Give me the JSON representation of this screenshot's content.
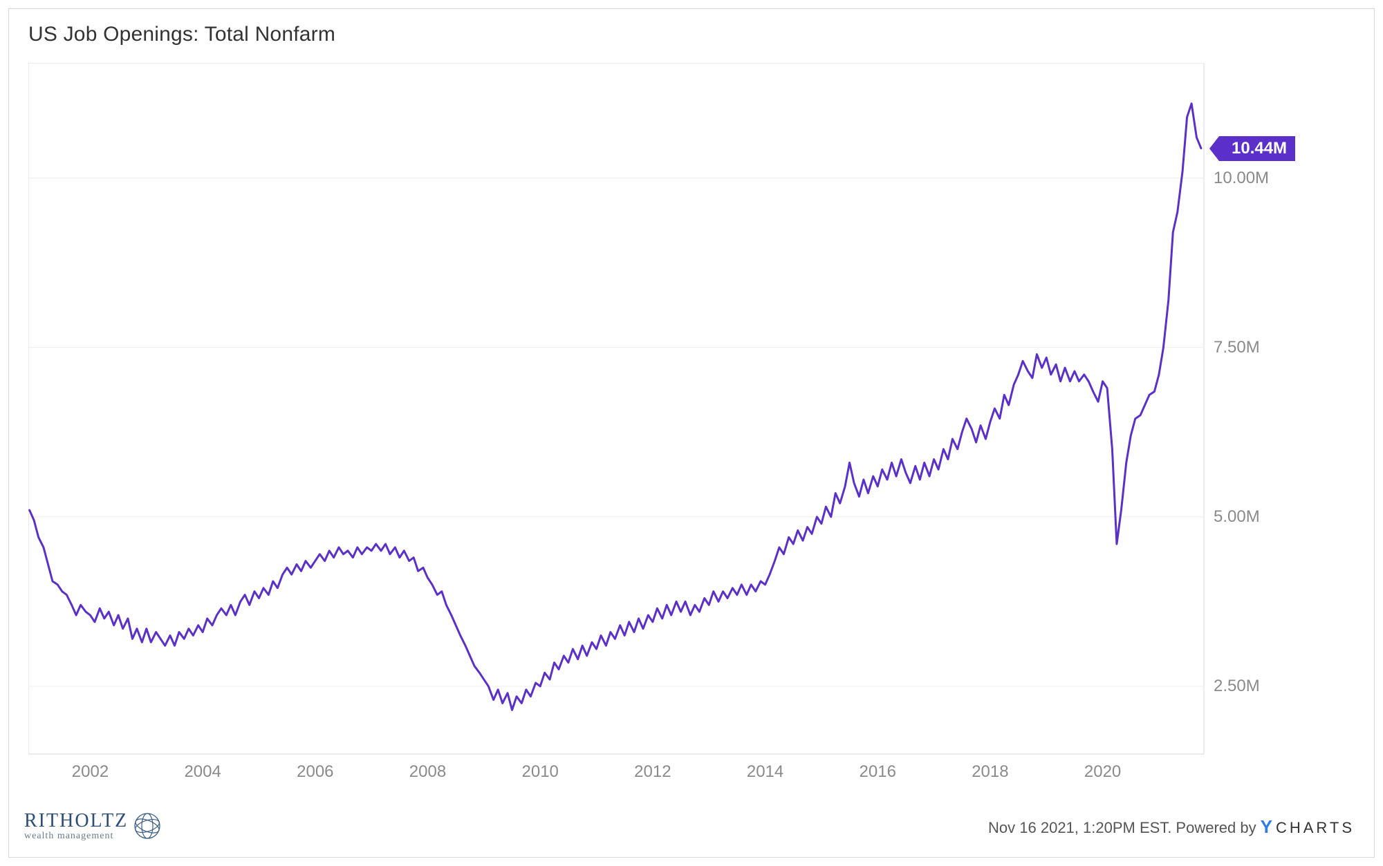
{
  "title": "US Job Openings: Total Nonfarm",
  "chart": {
    "type": "line",
    "line_color": "#5b2fc9",
    "line_width": 3,
    "background_color": "#ffffff",
    "grid_color": "#ececec",
    "border_color": "#d8d8d8",
    "axis_label_color": "#8a8a8a",
    "axis_label_fontsize": 24,
    "x": {
      "min": 2000.9,
      "max": 2021.8,
      "ticks": [
        2002,
        2004,
        2006,
        2008,
        2010,
        2012,
        2014,
        2016,
        2018,
        2020
      ],
      "tick_labels": [
        "2002",
        "2004",
        "2006",
        "2008",
        "2010",
        "2012",
        "2014",
        "2016",
        "2018",
        "2020"
      ]
    },
    "y": {
      "min": 1.5,
      "max": 11.7,
      "ticks": [
        2.5,
        5.0,
        7.5,
        10.0
      ],
      "tick_labels": [
        "2.50M",
        "5.00M",
        "7.50M",
        "10.00M"
      ]
    },
    "series": [
      {
        "x": 2000.92,
        "y": 5.1
      },
      {
        "x": 2001.0,
        "y": 4.95
      },
      {
        "x": 2001.08,
        "y": 4.7
      },
      {
        "x": 2001.17,
        "y": 4.55
      },
      {
        "x": 2001.25,
        "y": 4.3
      },
      {
        "x": 2001.33,
        "y": 4.05
      },
      {
        "x": 2001.42,
        "y": 4.0
      },
      {
        "x": 2001.5,
        "y": 3.9
      },
      {
        "x": 2001.58,
        "y": 3.85
      },
      {
        "x": 2001.67,
        "y": 3.7
      },
      {
        "x": 2001.75,
        "y": 3.55
      },
      {
        "x": 2001.83,
        "y": 3.7
      },
      {
        "x": 2001.92,
        "y": 3.6
      },
      {
        "x": 2002.0,
        "y": 3.55
      },
      {
        "x": 2002.08,
        "y": 3.45
      },
      {
        "x": 2002.17,
        "y": 3.65
      },
      {
        "x": 2002.25,
        "y": 3.5
      },
      {
        "x": 2002.33,
        "y": 3.6
      },
      {
        "x": 2002.42,
        "y": 3.4
      },
      {
        "x": 2002.5,
        "y": 3.55
      },
      {
        "x": 2002.58,
        "y": 3.35
      },
      {
        "x": 2002.67,
        "y": 3.5
      },
      {
        "x": 2002.75,
        "y": 3.2
      },
      {
        "x": 2002.83,
        "y": 3.35
      },
      {
        "x": 2002.92,
        "y": 3.15
      },
      {
        "x": 2003.0,
        "y": 3.35
      },
      {
        "x": 2003.08,
        "y": 3.15
      },
      {
        "x": 2003.17,
        "y": 3.3
      },
      {
        "x": 2003.25,
        "y": 3.2
      },
      {
        "x": 2003.33,
        "y": 3.1
      },
      {
        "x": 2003.42,
        "y": 3.25
      },
      {
        "x": 2003.5,
        "y": 3.1
      },
      {
        "x": 2003.58,
        "y": 3.3
      },
      {
        "x": 2003.67,
        "y": 3.2
      },
      {
        "x": 2003.75,
        "y": 3.35
      },
      {
        "x": 2003.83,
        "y": 3.25
      },
      {
        "x": 2003.92,
        "y": 3.4
      },
      {
        "x": 2004.0,
        "y": 3.3
      },
      {
        "x": 2004.08,
        "y": 3.5
      },
      {
        "x": 2004.17,
        "y": 3.4
      },
      {
        "x": 2004.25,
        "y": 3.55
      },
      {
        "x": 2004.33,
        "y": 3.65
      },
      {
        "x": 2004.42,
        "y": 3.55
      },
      {
        "x": 2004.5,
        "y": 3.7
      },
      {
        "x": 2004.58,
        "y": 3.55
      },
      {
        "x": 2004.67,
        "y": 3.75
      },
      {
        "x": 2004.75,
        "y": 3.85
      },
      {
        "x": 2004.83,
        "y": 3.7
      },
      {
        "x": 2004.92,
        "y": 3.9
      },
      {
        "x": 2005.0,
        "y": 3.8
      },
      {
        "x": 2005.08,
        "y": 3.95
      },
      {
        "x": 2005.17,
        "y": 3.85
      },
      {
        "x": 2005.25,
        "y": 4.05
      },
      {
        "x": 2005.33,
        "y": 3.95
      },
      {
        "x": 2005.42,
        "y": 4.15
      },
      {
        "x": 2005.5,
        "y": 4.25
      },
      {
        "x": 2005.58,
        "y": 4.15
      },
      {
        "x": 2005.67,
        "y": 4.3
      },
      {
        "x": 2005.75,
        "y": 4.2
      },
      {
        "x": 2005.83,
        "y": 4.35
      },
      {
        "x": 2005.92,
        "y": 4.25
      },
      {
        "x": 2006.0,
        "y": 4.35
      },
      {
        "x": 2006.08,
        "y": 4.45
      },
      {
        "x": 2006.17,
        "y": 4.35
      },
      {
        "x": 2006.25,
        "y": 4.5
      },
      {
        "x": 2006.33,
        "y": 4.4
      },
      {
        "x": 2006.42,
        "y": 4.55
      },
      {
        "x": 2006.5,
        "y": 4.45
      },
      {
        "x": 2006.58,
        "y": 4.5
      },
      {
        "x": 2006.67,
        "y": 4.4
      },
      {
        "x": 2006.75,
        "y": 4.55
      },
      {
        "x": 2006.83,
        "y": 4.45
      },
      {
        "x": 2006.92,
        "y": 4.55
      },
      {
        "x": 2007.0,
        "y": 4.5
      },
      {
        "x": 2007.08,
        "y": 4.6
      },
      {
        "x": 2007.17,
        "y": 4.5
      },
      {
        "x": 2007.25,
        "y": 4.6
      },
      {
        "x": 2007.33,
        "y": 4.45
      },
      {
        "x": 2007.42,
        "y": 4.55
      },
      {
        "x": 2007.5,
        "y": 4.4
      },
      {
        "x": 2007.58,
        "y": 4.5
      },
      {
        "x": 2007.67,
        "y": 4.35
      },
      {
        "x": 2007.75,
        "y": 4.4
      },
      {
        "x": 2007.83,
        "y": 4.2
      },
      {
        "x": 2007.92,
        "y": 4.25
      },
      {
        "x": 2008.0,
        "y": 4.1
      },
      {
        "x": 2008.08,
        "y": 4.0
      },
      {
        "x": 2008.17,
        "y": 3.85
      },
      {
        "x": 2008.25,
        "y": 3.9
      },
      {
        "x": 2008.33,
        "y": 3.7
      },
      {
        "x": 2008.42,
        "y": 3.55
      },
      {
        "x": 2008.5,
        "y": 3.4
      },
      {
        "x": 2008.58,
        "y": 3.25
      },
      {
        "x": 2008.67,
        "y": 3.1
      },
      {
        "x": 2008.75,
        "y": 2.95
      },
      {
        "x": 2008.83,
        "y": 2.8
      },
      {
        "x": 2008.92,
        "y": 2.7
      },
      {
        "x": 2009.0,
        "y": 2.6
      },
      {
        "x": 2009.08,
        "y": 2.5
      },
      {
        "x": 2009.17,
        "y": 2.3
      },
      {
        "x": 2009.25,
        "y": 2.45
      },
      {
        "x": 2009.33,
        "y": 2.25
      },
      {
        "x": 2009.42,
        "y": 2.4
      },
      {
        "x": 2009.5,
        "y": 2.15
      },
      {
        "x": 2009.58,
        "y": 2.35
      },
      {
        "x": 2009.67,
        "y": 2.25
      },
      {
        "x": 2009.75,
        "y": 2.45
      },
      {
        "x": 2009.83,
        "y": 2.35
      },
      {
        "x": 2009.92,
        "y": 2.55
      },
      {
        "x": 2010.0,
        "y": 2.5
      },
      {
        "x": 2010.08,
        "y": 2.7
      },
      {
        "x": 2010.17,
        "y": 2.6
      },
      {
        "x": 2010.25,
        "y": 2.85
      },
      {
        "x": 2010.33,
        "y": 2.75
      },
      {
        "x": 2010.42,
        "y": 2.95
      },
      {
        "x": 2010.5,
        "y": 2.85
      },
      {
        "x": 2010.58,
        "y": 3.05
      },
      {
        "x": 2010.67,
        "y": 2.9
      },
      {
        "x": 2010.75,
        "y": 3.1
      },
      {
        "x": 2010.83,
        "y": 2.95
      },
      {
        "x": 2010.92,
        "y": 3.15
      },
      {
        "x": 2011.0,
        "y": 3.05
      },
      {
        "x": 2011.08,
        "y": 3.25
      },
      {
        "x": 2011.17,
        "y": 3.1
      },
      {
        "x": 2011.25,
        "y": 3.3
      },
      {
        "x": 2011.33,
        "y": 3.2
      },
      {
        "x": 2011.42,
        "y": 3.4
      },
      {
        "x": 2011.5,
        "y": 3.25
      },
      {
        "x": 2011.58,
        "y": 3.45
      },
      {
        "x": 2011.67,
        "y": 3.3
      },
      {
        "x": 2011.75,
        "y": 3.5
      },
      {
        "x": 2011.83,
        "y": 3.35
      },
      {
        "x": 2011.92,
        "y": 3.55
      },
      {
        "x": 2012.0,
        "y": 3.45
      },
      {
        "x": 2012.08,
        "y": 3.65
      },
      {
        "x": 2012.17,
        "y": 3.5
      },
      {
        "x": 2012.25,
        "y": 3.7
      },
      {
        "x": 2012.33,
        "y": 3.55
      },
      {
        "x": 2012.42,
        "y": 3.75
      },
      {
        "x": 2012.5,
        "y": 3.6
      },
      {
        "x": 2012.58,
        "y": 3.75
      },
      {
        "x": 2012.67,
        "y": 3.55
      },
      {
        "x": 2012.75,
        "y": 3.7
      },
      {
        "x": 2012.83,
        "y": 3.6
      },
      {
        "x": 2012.92,
        "y": 3.8
      },
      {
        "x": 2013.0,
        "y": 3.7
      },
      {
        "x": 2013.08,
        "y": 3.9
      },
      {
        "x": 2013.17,
        "y": 3.75
      },
      {
        "x": 2013.25,
        "y": 3.9
      },
      {
        "x": 2013.33,
        "y": 3.8
      },
      {
        "x": 2013.42,
        "y": 3.95
      },
      {
        "x": 2013.5,
        "y": 3.85
      },
      {
        "x": 2013.58,
        "y": 4.0
      },
      {
        "x": 2013.67,
        "y": 3.85
      },
      {
        "x": 2013.75,
        "y": 4.0
      },
      {
        "x": 2013.83,
        "y": 3.9
      },
      {
        "x": 2013.92,
        "y": 4.05
      },
      {
        "x": 2014.0,
        "y": 4.0
      },
      {
        "x": 2014.08,
        "y": 4.15
      },
      {
        "x": 2014.17,
        "y": 4.35
      },
      {
        "x": 2014.25,
        "y": 4.55
      },
      {
        "x": 2014.33,
        "y": 4.45
      },
      {
        "x": 2014.42,
        "y": 4.7
      },
      {
        "x": 2014.5,
        "y": 4.6
      },
      {
        "x": 2014.58,
        "y": 4.8
      },
      {
        "x": 2014.67,
        "y": 4.65
      },
      {
        "x": 2014.75,
        "y": 4.85
      },
      {
        "x": 2014.83,
        "y": 4.75
      },
      {
        "x": 2014.92,
        "y": 5.0
      },
      {
        "x": 2015.0,
        "y": 4.9
      },
      {
        "x": 2015.08,
        "y": 5.15
      },
      {
        "x": 2015.17,
        "y": 5.0
      },
      {
        "x": 2015.25,
        "y": 5.35
      },
      {
        "x": 2015.33,
        "y": 5.2
      },
      {
        "x": 2015.42,
        "y": 5.45
      },
      {
        "x": 2015.5,
        "y": 5.8
      },
      {
        "x": 2015.58,
        "y": 5.5
      },
      {
        "x": 2015.67,
        "y": 5.3
      },
      {
        "x": 2015.75,
        "y": 5.55
      },
      {
        "x": 2015.83,
        "y": 5.35
      },
      {
        "x": 2015.92,
        "y": 5.6
      },
      {
        "x": 2016.0,
        "y": 5.45
      },
      {
        "x": 2016.08,
        "y": 5.7
      },
      {
        "x": 2016.17,
        "y": 5.55
      },
      {
        "x": 2016.25,
        "y": 5.8
      },
      {
        "x": 2016.33,
        "y": 5.6
      },
      {
        "x": 2016.42,
        "y": 5.85
      },
      {
        "x": 2016.5,
        "y": 5.65
      },
      {
        "x": 2016.58,
        "y": 5.5
      },
      {
        "x": 2016.67,
        "y": 5.75
      },
      {
        "x": 2016.75,
        "y": 5.55
      },
      {
        "x": 2016.83,
        "y": 5.8
      },
      {
        "x": 2016.92,
        "y": 5.6
      },
      {
        "x": 2017.0,
        "y": 5.85
      },
      {
        "x": 2017.08,
        "y": 5.7
      },
      {
        "x": 2017.17,
        "y": 6.0
      },
      {
        "x": 2017.25,
        "y": 5.85
      },
      {
        "x": 2017.33,
        "y": 6.15
      },
      {
        "x": 2017.42,
        "y": 6.0
      },
      {
        "x": 2017.5,
        "y": 6.25
      },
      {
        "x": 2017.58,
        "y": 6.45
      },
      {
        "x": 2017.67,
        "y": 6.3
      },
      {
        "x": 2017.75,
        "y": 6.1
      },
      {
        "x": 2017.83,
        "y": 6.35
      },
      {
        "x": 2017.92,
        "y": 6.15
      },
      {
        "x": 2018.0,
        "y": 6.4
      },
      {
        "x": 2018.08,
        "y": 6.6
      },
      {
        "x": 2018.17,
        "y": 6.45
      },
      {
        "x": 2018.25,
        "y": 6.8
      },
      {
        "x": 2018.33,
        "y": 6.65
      },
      {
        "x": 2018.42,
        "y": 6.95
      },
      {
        "x": 2018.5,
        "y": 7.1
      },
      {
        "x": 2018.58,
        "y": 7.3
      },
      {
        "x": 2018.67,
        "y": 7.15
      },
      {
        "x": 2018.75,
        "y": 7.05
      },
      {
        "x": 2018.83,
        "y": 7.4
      },
      {
        "x": 2018.92,
        "y": 7.2
      },
      {
        "x": 2019.0,
        "y": 7.35
      },
      {
        "x": 2019.08,
        "y": 7.1
      },
      {
        "x": 2019.17,
        "y": 7.25
      },
      {
        "x": 2019.25,
        "y": 7.0
      },
      {
        "x": 2019.33,
        "y": 7.2
      },
      {
        "x": 2019.42,
        "y": 7.0
      },
      {
        "x": 2019.5,
        "y": 7.15
      },
      {
        "x": 2019.58,
        "y": 7.0
      },
      {
        "x": 2019.67,
        "y": 7.1
      },
      {
        "x": 2019.75,
        "y": 7.0
      },
      {
        "x": 2019.83,
        "y": 6.85
      },
      {
        "x": 2019.92,
        "y": 6.7
      },
      {
        "x": 2020.0,
        "y": 7.0
      },
      {
        "x": 2020.08,
        "y": 6.9
      },
      {
        "x": 2020.17,
        "y": 6.0
      },
      {
        "x": 2020.25,
        "y": 4.6
      },
      {
        "x": 2020.33,
        "y": 5.1
      },
      {
        "x": 2020.42,
        "y": 5.8
      },
      {
        "x": 2020.5,
        "y": 6.2
      },
      {
        "x": 2020.58,
        "y": 6.45
      },
      {
        "x": 2020.67,
        "y": 6.5
      },
      {
        "x": 2020.75,
        "y": 6.65
      },
      {
        "x": 2020.83,
        "y": 6.8
      },
      {
        "x": 2020.92,
        "y": 6.85
      },
      {
        "x": 2021.0,
        "y": 7.1
      },
      {
        "x": 2021.08,
        "y": 7.5
      },
      {
        "x": 2021.17,
        "y": 8.2
      },
      {
        "x": 2021.25,
        "y": 9.2
      },
      {
        "x": 2021.33,
        "y": 9.5
      },
      {
        "x": 2021.42,
        "y": 10.1
      },
      {
        "x": 2021.5,
        "y": 10.9
      },
      {
        "x": 2021.58,
        "y": 11.1
      },
      {
        "x": 2021.67,
        "y": 10.6
      },
      {
        "x": 2021.75,
        "y": 10.44
      }
    ],
    "callout": {
      "label": "10.44M",
      "value": 10.44,
      "bg_color": "#5b2fc9",
      "text_color": "#ffffff"
    }
  },
  "footer": {
    "brand_name": "RITHOLTZ",
    "brand_sub": "wealth management",
    "brand_color": "#2a4d7a",
    "timestamp": "Nov 16 2021, 1:20PM EST.",
    "powered_by_prefix": "Powered by",
    "powered_by_brand": "CHARTS",
    "powered_by_y_color": "#2b7de1"
  }
}
